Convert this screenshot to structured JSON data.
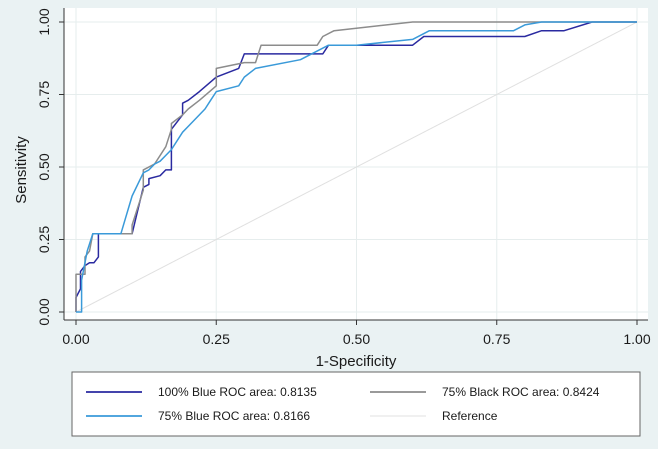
{
  "chart_data": {
    "type": "line",
    "title": "",
    "xlabel": "1-Specificity",
    "ylabel": "Sensitivity",
    "xlim": [
      0,
      1
    ],
    "ylim": [
      0,
      1
    ],
    "xticks": [
      "0.00",
      "0.25",
      "0.50",
      "0.75",
      "1.00"
    ],
    "yticks": [
      "0.00",
      "0.25",
      "0.50",
      "0.75",
      "1.00"
    ],
    "grid": true,
    "legend_position": "bottom",
    "series": [
      {
        "name": "100% Blue ROC area: 0.8135",
        "color": "#2a2aa0",
        "x": [
          0,
          0,
          0.008,
          0.008,
          0.016,
          0.016,
          0.024,
          0.032,
          0.04,
          0.04,
          0.1,
          0.11,
          0.12,
          0.13,
          0.13,
          0.15,
          0.16,
          0.17,
          0.17,
          0.19,
          0.19,
          0.2,
          0.22,
          0.25,
          0.29,
          0.3,
          0.35,
          0.44,
          0.45,
          0.6,
          0.62,
          0.8,
          0.83,
          0.87,
          0.92,
          1
        ],
        "y": [
          0,
          0.05,
          0.08,
          0.14,
          0.16,
          0.16,
          0.17,
          0.17,
          0.19,
          0.27,
          0.27,
          0.35,
          0.43,
          0.44,
          0.46,
          0.47,
          0.49,
          0.49,
          0.63,
          0.68,
          0.72,
          0.73,
          0.76,
          0.81,
          0.84,
          0.89,
          0.89,
          0.89,
          0.92,
          0.92,
          0.95,
          0.95,
          0.97,
          0.97,
          1,
          1
        ]
      },
      {
        "name": "75% Black ROC area: 0.8424",
        "color": "#8c8c8c",
        "x": [
          0,
          0,
          0.016,
          0.016,
          0.024,
          0.03,
          0.04,
          0.1,
          0.1,
          0.12,
          0.12,
          0.14,
          0.16,
          0.17,
          0.17,
          0.19,
          0.2,
          0.22,
          0.25,
          0.25,
          0.3,
          0.32,
          0.33,
          0.43,
          0.44,
          0.46,
          0.6,
          0.62,
          0.82,
          1
        ],
        "y": [
          0,
          0.13,
          0.13,
          0.19,
          0.21,
          0.27,
          0.27,
          0.27,
          0.3,
          0.42,
          0.49,
          0.51,
          0.57,
          0.63,
          0.65,
          0.68,
          0.7,
          0.73,
          0.78,
          0.84,
          0.86,
          0.86,
          0.92,
          0.92,
          0.95,
          0.97,
          1,
          1,
          1,
          1
        ]
      },
      {
        "name": "75% Blue ROC area: 0.8166",
        "color": "#3a9ad9",
        "x": [
          0,
          0.01,
          0.01,
          0.02,
          0.03,
          0.08,
          0.1,
          0.12,
          0.13,
          0.14,
          0.15,
          0.16,
          0.17,
          0.19,
          0.21,
          0.23,
          0.24,
          0.25,
          0.29,
          0.3,
          0.32,
          0.4,
          0.45,
          0.5,
          0.6,
          0.63,
          0.78,
          0.8,
          0.83,
          1
        ],
        "y": [
          0,
          0,
          0.11,
          0.21,
          0.27,
          0.27,
          0.4,
          0.48,
          0.49,
          0.51,
          0.52,
          0.54,
          0.56,
          0.62,
          0.66,
          0.7,
          0.73,
          0.76,
          0.78,
          0.81,
          0.84,
          0.87,
          0.92,
          0.92,
          0.94,
          0.97,
          0.97,
          0.99,
          1,
          1
        ]
      },
      {
        "name": "Reference",
        "color": "#e0e0e0",
        "x": [
          0,
          1
        ],
        "y": [
          0,
          1
        ]
      }
    ]
  }
}
